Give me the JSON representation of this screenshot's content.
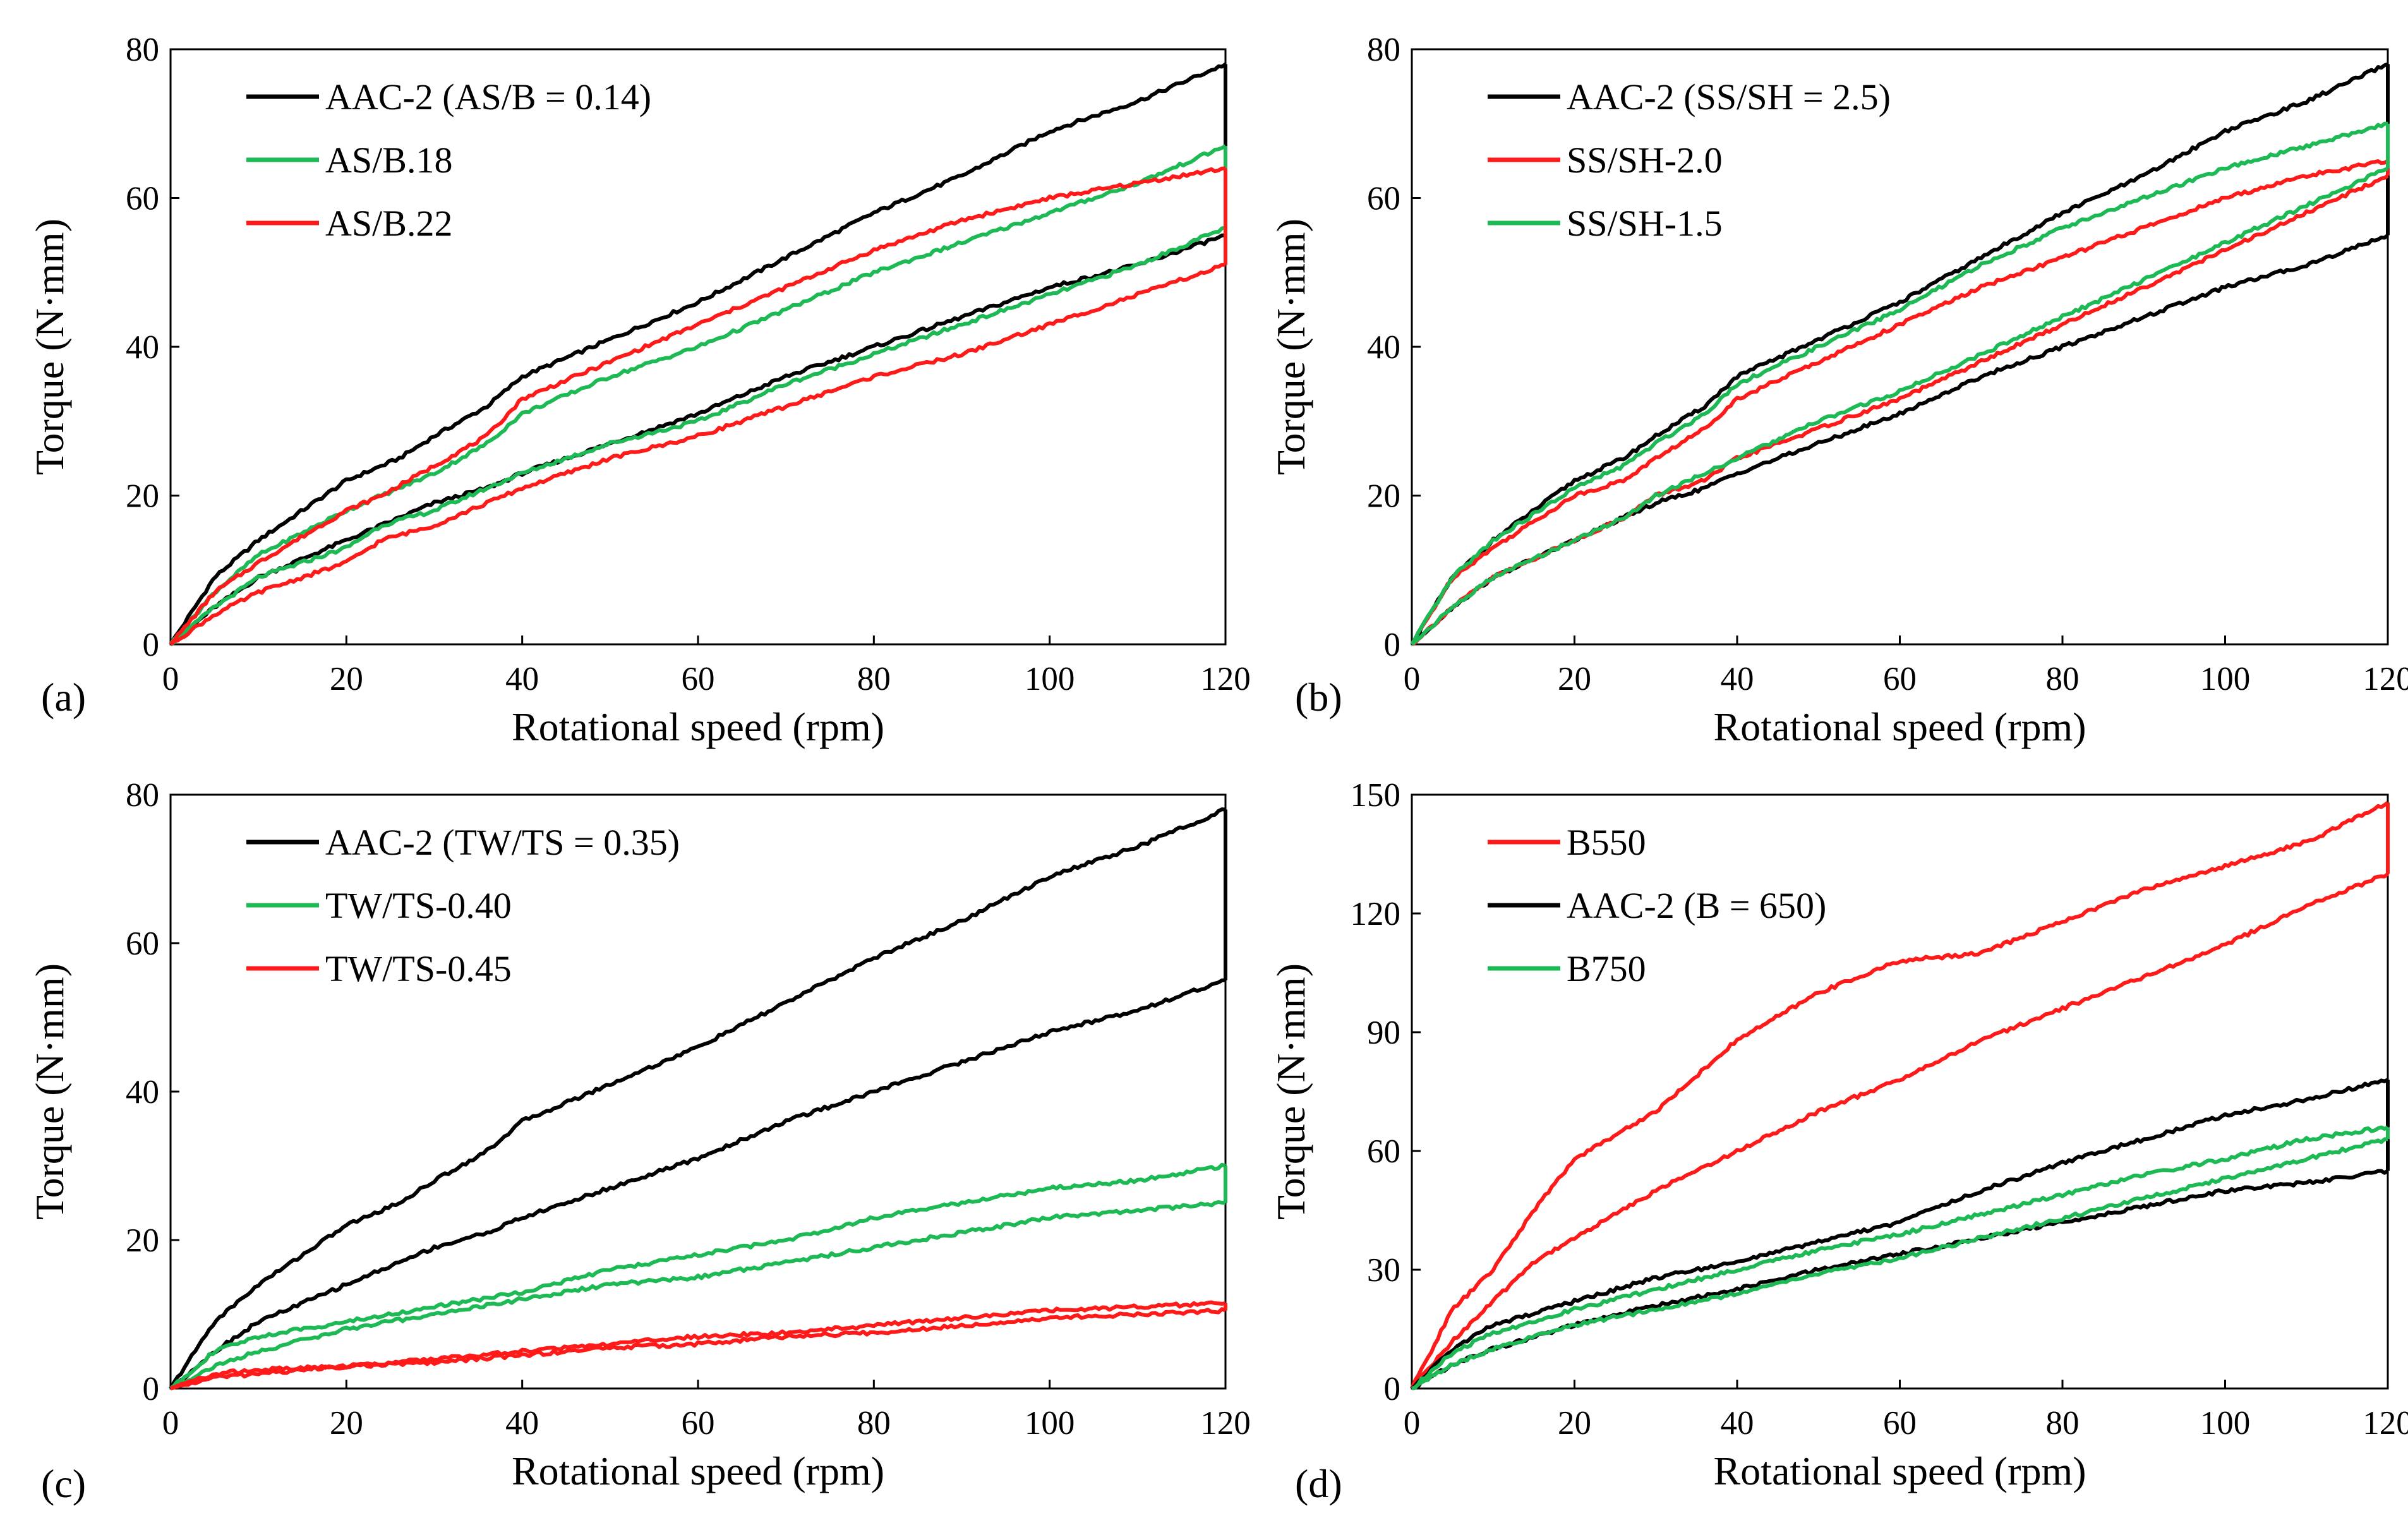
{
  "colors": {
    "black": "#000000",
    "green": "#1db954",
    "red": "#ff1a1a"
  },
  "chart_data": [
    {
      "type": "line",
      "panel_label": "(a)",
      "xlabel": "Rotational  speed  (rpm)",
      "ylabel": "Torque (N·mm)",
      "xlim": [
        0,
        120
      ],
      "ylim": [
        0,
        80
      ],
      "xticks": [
        0,
        20,
        40,
        60,
        80,
        100,
        120
      ],
      "yticks": [
        0,
        20,
        40,
        60,
        80
      ],
      "grid": false,
      "legend_position": "top-left",
      "series": [
        {
          "name": "AAC-2 (AS/B = 0.14)",
          "color": "black",
          "x_up": [
            0,
            5,
            10,
            20,
            26,
            30,
            36,
            40,
            50,
            60,
            70,
            80,
            90,
            100,
            110,
            120
          ],
          "y_up": [
            0,
            9,
            14,
            22,
            25,
            28,
            32,
            36,
            41,
            46,
            52,
            58,
            63,
            69,
            73,
            78
          ],
          "x_down": [
            0,
            5,
            10,
            20,
            26,
            30,
            36,
            40,
            50,
            60,
            70,
            80,
            90,
            100,
            110,
            120
          ],
          "y_down": [
            0,
            5,
            9,
            14,
            17,
            19,
            21,
            23,
            27,
            31,
            36,
            40,
            44,
            48,
            51,
            55
          ]
        },
        {
          "name": "AS/B.18",
          "color": "green",
          "x_up": [
            0,
            5,
            10,
            20,
            24,
            30,
            36,
            40,
            50,
            60,
            70,
            80,
            90,
            100,
            110,
            120
          ],
          "y_up": [
            0,
            7,
            12,
            18,
            20,
            23,
            27,
            31,
            36,
            40,
            45,
            50,
            54,
            58,
            62,
            67
          ],
          "x_down": [
            0,
            5,
            10,
            20,
            24,
            30,
            36,
            40,
            50,
            60,
            70,
            80,
            90,
            100,
            110,
            120
          ],
          "y_down": [
            0,
            5,
            9,
            13,
            16,
            18,
            21,
            23,
            27,
            30,
            35,
            39,
            43,
            47,
            51,
            56
          ]
        },
        {
          "name": "AS/B.22",
          "color": "red",
          "x_up": [
            0,
            5,
            10,
            20,
            24,
            30,
            36,
            40,
            50,
            60,
            70,
            80,
            90,
            100,
            110,
            120
          ],
          "y_up": [
            0,
            7,
            11,
            18,
            20,
            24,
            28,
            33,
            38,
            43,
            48,
            53,
            57,
            60,
            62,
            64
          ],
          "x_down": [
            0,
            5,
            10,
            20,
            24,
            30,
            36,
            40,
            50,
            60,
            70,
            80,
            90,
            100,
            110,
            120
          ],
          "y_down": [
            0,
            4,
            7,
            11,
            14,
            16,
            19,
            21,
            25,
            28,
            32,
            36,
            39,
            43,
            47,
            51
          ]
        }
      ]
    },
    {
      "type": "line",
      "panel_label": "(b)",
      "xlabel": "Rotational  speed  (rpm)",
      "ylabel": "Torque (N·mm)",
      "xlim": [
        0,
        120
      ],
      "ylim": [
        0,
        80
      ],
      "xticks": [
        0,
        20,
        40,
        60,
        80,
        100,
        120
      ],
      "yticks": [
        0,
        20,
        40,
        60,
        80
      ],
      "grid": false,
      "legend_position": "top-left",
      "series": [
        {
          "name": "AAC-2 (SS/SH = 2.5)",
          "color": "black",
          "x_up": [
            0,
            5,
            10,
            20,
            26,
            30,
            36,
            40,
            50,
            60,
            70,
            80,
            90,
            100,
            110,
            120
          ],
          "y_up": [
            0,
            9,
            14,
            22,
            25,
            28,
            32,
            36,
            41,
            46,
            52,
            58,
            63,
            69,
            73,
            78
          ],
          "x_down": [
            0,
            5,
            10,
            20,
            26,
            30,
            36,
            40,
            50,
            60,
            70,
            80,
            90,
            100,
            110,
            120
          ],
          "y_down": [
            0,
            5,
            9,
            14,
            17,
            19,
            21,
            23,
            27,
            31,
            36,
            40,
            44,
            48,
            51,
            55
          ]
        },
        {
          "name": "SS/SH-2.0",
          "color": "red",
          "x_up": [
            0,
            5,
            10,
            20,
            26,
            30,
            36,
            40,
            50,
            60,
            70,
            80,
            90,
            100,
            110,
            120
          ],
          "y_up": [
            0,
            9,
            13,
            20,
            22,
            25,
            29,
            33,
            38,
            43,
            48,
            52,
            56,
            60,
            63,
            65
          ],
          "x_down": [
            0,
            5,
            10,
            20,
            26,
            30,
            36,
            40,
            50,
            60,
            70,
            80,
            90,
            100,
            110,
            120
          ],
          "y_down": [
            0,
            5,
            9,
            14,
            17,
            20,
            22,
            25,
            29,
            33,
            38,
            43,
            48,
            53,
            58,
            63
          ]
        },
        {
          "name": "SS/SH-1.5",
          "color": "green",
          "x_up": [
            0,
            5,
            10,
            20,
            26,
            30,
            36,
            40,
            50,
            60,
            70,
            80,
            90,
            100,
            110,
            120
          ],
          "y_up": [
            0,
            9,
            14,
            21,
            24,
            27,
            31,
            35,
            40,
            45,
            51,
            56,
            60,
            64,
            67,
            70
          ],
          "x_down": [
            0,
            5,
            10,
            20,
            26,
            30,
            36,
            40,
            50,
            60,
            70,
            80,
            90,
            100,
            110,
            120
          ],
          "y_down": [
            0,
            5,
            9,
            14,
            17,
            20,
            23,
            25,
            30,
            34,
            39,
            44,
            49,
            54,
            59,
            64
          ]
        }
      ]
    },
    {
      "type": "line",
      "panel_label": "(c)",
      "xlabel": "Rotational  speed  (rpm)",
      "ylabel": "Torque (N·mm)",
      "xlim": [
        0,
        120
      ],
      "ylim": [
        0,
        80
      ],
      "xticks": [
        0,
        20,
        40,
        60,
        80,
        100,
        120
      ],
      "yticks": [
        0,
        20,
        40,
        60,
        80
      ],
      "grid": false,
      "legend_position": "top-left",
      "series": [
        {
          "name": "AAC-2 (TW/TS = 0.35)",
          "color": "black",
          "x_up": [
            0,
            5,
            10,
            20,
            26,
            30,
            36,
            40,
            50,
            60,
            70,
            80,
            90,
            100,
            110,
            120
          ],
          "y_up": [
            0,
            9,
            14,
            22,
            25,
            28,
            32,
            36,
            41,
            46,
            52,
            58,
            63,
            69,
            73,
            78
          ],
          "x_down": [
            0,
            5,
            10,
            20,
            26,
            30,
            36,
            40,
            50,
            60,
            70,
            80,
            90,
            100,
            110,
            120
          ],
          "y_down": [
            0,
            5,
            9,
            14,
            17,
            19,
            21,
            23,
            27,
            31,
            36,
            40,
            44,
            48,
            51,
            55
          ]
        },
        {
          "name": "TW/TS-0.40",
          "color": "green",
          "x_up": [
            0,
            5,
            10,
            20,
            30,
            40,
            50,
            60,
            70,
            80,
            90,
            100,
            110,
            120
          ],
          "y_up": [
            0,
            5,
            7,
            9,
            11,
            13,
            16,
            18,
            20,
            23,
            25,
            27,
            28,
            30
          ],
          "x_down": [
            0,
            5,
            10,
            20,
            30,
            40,
            50,
            60,
            70,
            80,
            90,
            100,
            110,
            120
          ],
          "y_down": [
            0,
            3,
            5,
            8,
            10,
            12,
            14,
            15,
            17,
            19,
            21,
            23,
            24,
            25
          ]
        },
        {
          "name": "TW/TS-0.45",
          "color": "red",
          "x_up": [
            0,
            5,
            10,
            20,
            30,
            40,
            50,
            60,
            70,
            80,
            90,
            100,
            110,
            120
          ],
          "y_up": [
            0,
            2,
            2.5,
            3,
            4,
            5,
            6,
            7,
            7.5,
            8.5,
            9.5,
            10.5,
            11,
            11.5
          ],
          "x_down": [
            0,
            5,
            10,
            20,
            30,
            40,
            50,
            60,
            70,
            80,
            90,
            100,
            110,
            120
          ],
          "y_down": [
            0,
            1.5,
            2,
            3,
            3.5,
            4.5,
            5.5,
            6,
            7,
            7.5,
            8.5,
            9.5,
            10,
            10.5
          ]
        }
      ]
    },
    {
      "type": "line",
      "panel_label": "(d)",
      "xlabel": "Rotational  speed  (rpm)",
      "ylabel": "Torque (N·mm)",
      "xlim": [
        0,
        120
      ],
      "ylim": [
        0,
        150
      ],
      "xticks": [
        0,
        20,
        40,
        60,
        80,
        100,
        120
      ],
      "yticks": [
        0,
        30,
        60,
        90,
        120,
        150
      ],
      "grid": false,
      "legend_position": "top-left",
      "series": [
        {
          "name": "B550",
          "color": "red",
          "x_up": [
            0,
            5,
            10,
            15,
            20,
            30,
            40,
            50,
            60,
            70,
            80,
            90,
            100,
            110,
            120
          ],
          "y_up": [
            0,
            20,
            30,
            45,
            58,
            70,
            88,
            100,
            108,
            110,
            118,
            126,
            132,
            138,
            148
          ],
          "x_down": [
            0,
            5,
            10,
            15,
            20,
            30,
            40,
            50,
            60,
            70,
            80,
            90,
            100,
            110,
            120
          ],
          "y_down": [
            0,
            12,
            22,
            32,
            38,
            50,
            60,
            70,
            78,
            88,
            96,
            104,
            112,
            122,
            130
          ]
        },
        {
          "name": "AAC-2 (B = 650)",
          "color": "black",
          "x_up": [
            0,
            5,
            10,
            20,
            30,
            40,
            50,
            60,
            70,
            80,
            90,
            100,
            110,
            120
          ],
          "y_up": [
            0,
            10,
            16,
            22,
            28,
            32,
            37,
            42,
            50,
            57,
            63,
            69,
            73,
            78
          ],
          "x_down": [
            0,
            5,
            10,
            20,
            30,
            40,
            50,
            60,
            70,
            80,
            90,
            100,
            110,
            120
          ],
          "y_down": [
            0,
            6,
            10,
            16,
            21,
            25,
            30,
            34,
            38,
            42,
            46,
            50,
            52,
            55
          ]
        },
        {
          "name": "B750",
          "color": "green",
          "x_up": [
            0,
            5,
            10,
            20,
            30,
            40,
            50,
            60,
            70,
            80,
            90,
            100,
            110,
            120
          ],
          "y_up": [
            0,
            9,
            14,
            20,
            25,
            30,
            35,
            39,
            44,
            49,
            54,
            58,
            63,
            66
          ],
          "x_down": [
            0,
            5,
            10,
            20,
            30,
            40,
            50,
            60,
            70,
            80,
            90,
            100,
            110,
            120
          ],
          "y_down": [
            0,
            6,
            10,
            16,
            20,
            24,
            29,
            33,
            38,
            43,
            48,
            53,
            58,
            63
          ]
        }
      ]
    }
  ]
}
